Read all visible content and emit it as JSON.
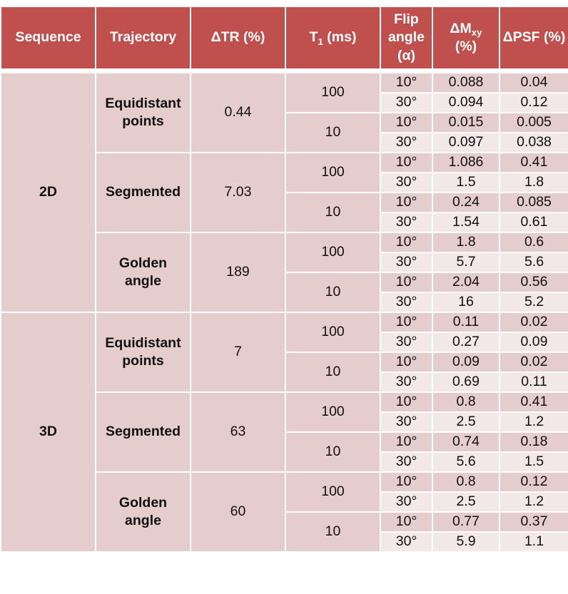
{
  "header": {
    "sequence": "Sequence",
    "trajectory": "Trajectory",
    "delta_tr": "ΔTR (%)",
    "t1_main": "T",
    "t1_sub": "1",
    "t1_unit": " (ms)",
    "flip_line1": "Flip",
    "flip_line2": "angle",
    "flip_line3": "(α)",
    "dm_main": "ΔM",
    "dm_sub": "xy",
    "dm_unit": "(%)",
    "psf": "ΔPSF (%)"
  },
  "rows": [
    {
      "flip": "10°",
      "dm": "0.088",
      "psf": "0.04"
    },
    {
      "flip": "30°",
      "dm": "0.094",
      "psf": "0.12"
    },
    {
      "flip": "10°",
      "dm": "0.015",
      "psf": "0.005"
    },
    {
      "flip": "30°",
      "dm": "0.097",
      "psf": "0.038"
    },
    {
      "flip": "10°",
      "dm": "1.086",
      "psf": "0.41"
    },
    {
      "flip": "30°",
      "dm": "1.5",
      "psf": "1.8"
    },
    {
      "flip": "10°",
      "dm": "0.24",
      "psf": "0.085"
    },
    {
      "flip": "30°",
      "dm": "1.54",
      "psf": "0.61"
    },
    {
      "flip": "10°",
      "dm": "1.8",
      "psf": "0.6"
    },
    {
      "flip": "30°",
      "dm": "5.7",
      "psf": "5.6"
    },
    {
      "flip": "10°",
      "dm": "2.04",
      "psf": "0.56"
    },
    {
      "flip": "30°",
      "dm": "16",
      "psf": "5.2"
    },
    {
      "flip": "10°",
      "dm": "0.11",
      "psf": "0.02"
    },
    {
      "flip": "30°",
      "dm": "0.27",
      "psf": "0.09"
    },
    {
      "flip": "10°",
      "dm": "0.09",
      "psf": "0.02"
    },
    {
      "flip": "30°",
      "dm": "0.69",
      "psf": "0.11"
    },
    {
      "flip": "10°",
      "dm": "0.8",
      "psf": "0.41"
    },
    {
      "flip": "30°",
      "dm": "2.5",
      "psf": "1.2"
    },
    {
      "flip": "10°",
      "dm": "0.74",
      "psf": "0.18"
    },
    {
      "flip": "30°",
      "dm": "5.6",
      "psf": "1.5"
    },
    {
      "flip": "10°",
      "dm": "0.8",
      "psf": "0.12"
    },
    {
      "flip": "30°",
      "dm": "2.5",
      "psf": "1.2"
    },
    {
      "flip": "10°",
      "dm": "0.77",
      "psf": "0.37"
    },
    {
      "flip": "30°",
      "dm": "5.9",
      "psf": "1.1"
    }
  ],
  "groups": {
    "seq": [
      "2D",
      "3D"
    ],
    "traj": [
      {
        "line1": "Equidistant",
        "line2": "points"
      },
      {
        "line1": "Segmented",
        "line2": ""
      },
      {
        "line1": "Golden",
        "line2": "angle"
      },
      {
        "line1": "Equidistant",
        "line2": "points"
      },
      {
        "line1": "Segmented",
        "line2": ""
      },
      {
        "line1": "Golden",
        "line2": "angle"
      }
    ],
    "dtr": [
      "0.44",
      "7.03",
      "189",
      "7",
      "63",
      "60"
    ],
    "t1": [
      "100",
      "10",
      "100",
      "10",
      "100",
      "10",
      "100",
      "10",
      "100",
      "10",
      "100",
      "10"
    ]
  }
}
